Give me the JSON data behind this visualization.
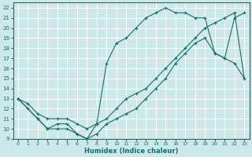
{
  "xlabel": "Humidex (Indice chaleur)",
  "xlim": [
    -0.5,
    23.5
  ],
  "ylim": [
    9,
    22.5
  ],
  "yticks": [
    9,
    10,
    11,
    12,
    13,
    14,
    15,
    16,
    17,
    18,
    19,
    20,
    21,
    22
  ],
  "xticks": [
    0,
    1,
    2,
    3,
    4,
    5,
    6,
    7,
    8,
    9,
    10,
    11,
    12,
    13,
    14,
    15,
    16,
    17,
    18,
    19,
    20,
    21,
    22,
    23
  ],
  "bg_color": "#cce8e8",
  "line_color": "#1a6b6b",
  "grid_color": "#ffffff",
  "line1_x": [
    0,
    1,
    2,
    3,
    4,
    5,
    6,
    7,
    8,
    9,
    10,
    11,
    12,
    13,
    14,
    15,
    16,
    17,
    18,
    19,
    20,
    21,
    22,
    23
  ],
  "line1_y": [
    13,
    12,
    11,
    10,
    10.5,
    10.5,
    9.5,
    9,
    9.5,
    10.5,
    11,
    11.5,
    12,
    13,
    14,
    15,
    16.5,
    17.5,
    18.5,
    19,
    17.5,
    17,
    16.5,
    15
  ],
  "line2_x": [
    0,
    2,
    3,
    4,
    5,
    6,
    7,
    8,
    9,
    10,
    11,
    12,
    13,
    14,
    15,
    16,
    17,
    18,
    19,
    20,
    21,
    22,
    23
  ],
  "line2_y": [
    13,
    11,
    10,
    10,
    10,
    9.5,
    9,
    10.5,
    16.5,
    18.5,
    19,
    20,
    21,
    21.5,
    22,
    21.5,
    21.5,
    21,
    21,
    17.5,
    17,
    21,
    21.5
  ],
  "line3_x": [
    0,
    1,
    2,
    3,
    4,
    5,
    6,
    7,
    8,
    9,
    10,
    11,
    12,
    13,
    14,
    15,
    16,
    17,
    18,
    19,
    20,
    21,
    22,
    23
  ],
  "line3_y": [
    13,
    12.5,
    11.5,
    11,
    11,
    11,
    10.5,
    10,
    10.5,
    11,
    12,
    13,
    13.5,
    14,
    15,
    16,
    17,
    18,
    19,
    20,
    20.5,
    21,
    21.5,
    15
  ]
}
